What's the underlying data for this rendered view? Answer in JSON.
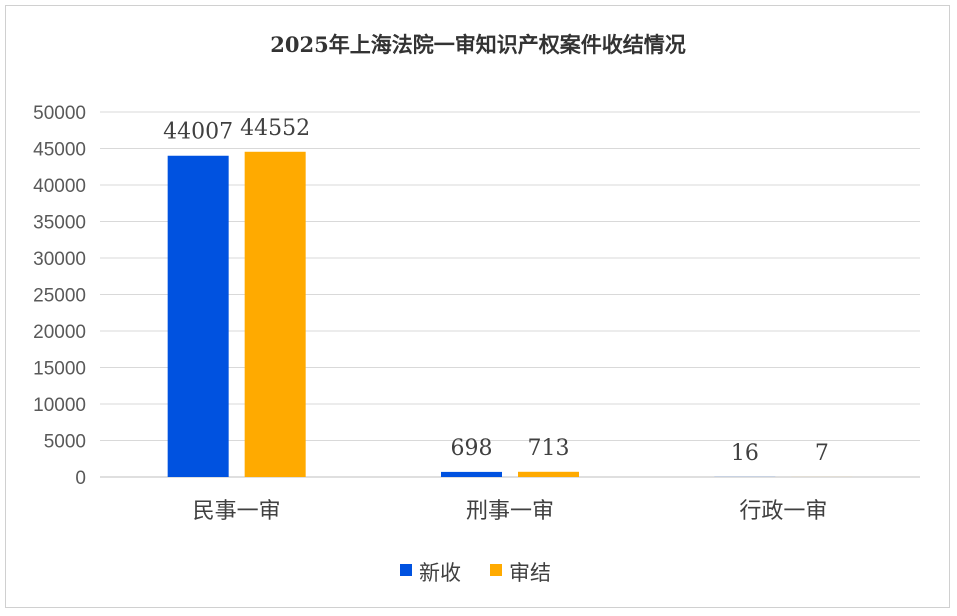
{
  "chart_data": {
    "type": "bar",
    "title": "2025年上海法院一审知识产权案件收结情况",
    "categories": [
      "民事一审",
      "刑事一审",
      "行政一审"
    ],
    "series": [
      {
        "name": "新收",
        "color": "#0052E0",
        "values": [
          44007,
          698,
          16
        ]
      },
      {
        "name": "审结",
        "color": "#FFAA00",
        "values": [
          44552,
          713,
          7
        ]
      }
    ],
    "ylim": [
      0,
      50000
    ],
    "yticks": [
      "0",
      "5000",
      "10000",
      "15000",
      "20000",
      "25000",
      "30000",
      "35000",
      "40000",
      "45000",
      "50000"
    ],
    "grid": true,
    "legend": "bottom",
    "data_labels": true
  }
}
